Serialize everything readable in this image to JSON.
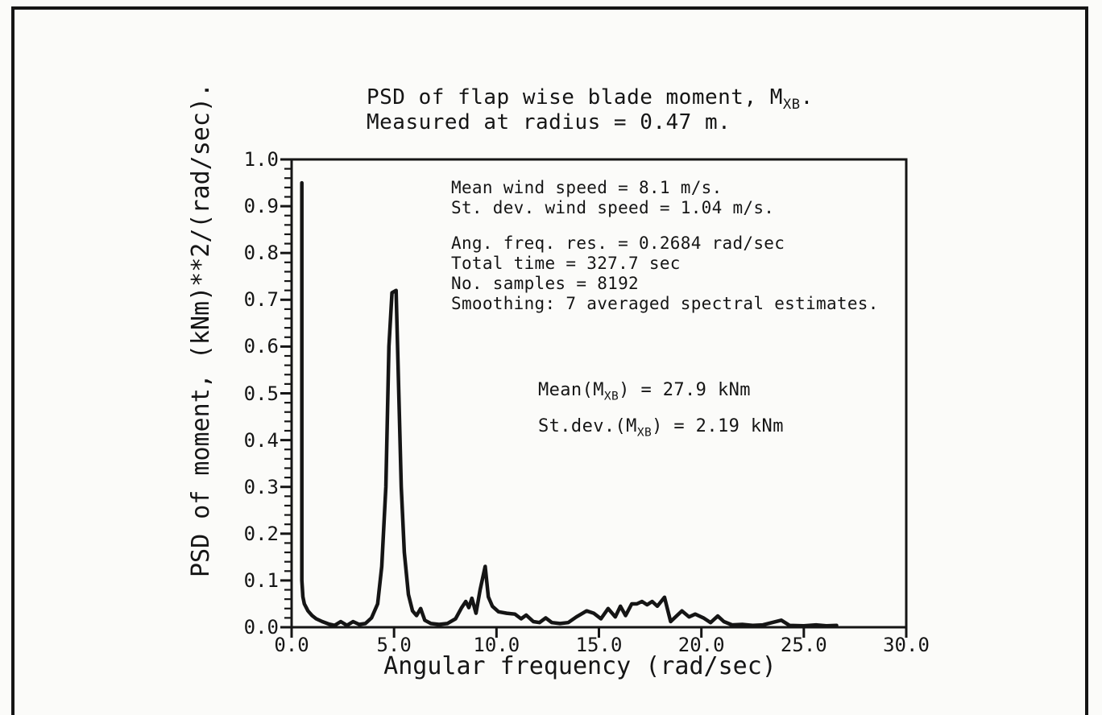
{
  "chart_data": {
    "type": "line",
    "title": {
      "prefix": "PSD of flap wise blade moment, M",
      "sub": "XB",
      "suffix": "."
    },
    "subtitle": "Measured at radius = 0.47 m.",
    "xlabel": "Angular frequency (rad/sec)",
    "ylabel": "PSD of moment, (kNm)**2/(rad/sec).",
    "xlim": [
      0,
      30
    ],
    "ylim": [
      0,
      1.0
    ],
    "x_tick_labels": [
      "0.0",
      "5.0",
      "10.0",
      "15.0",
      "20.0",
      "25.0",
      "30.0"
    ],
    "y_tick_labels": [
      "0.0",
      "0.1",
      "0.2",
      "0.3",
      "0.4",
      "0.5",
      "0.6",
      "0.7",
      "0.8",
      "0.9",
      "1.0"
    ],
    "y_minor_tick_step": 0.02,
    "grid": "off",
    "line_color": "#151515",
    "annotations": {
      "wind": [
        "Mean wind speed = 8.1 m/s.",
        "St. dev. wind speed = 1.04 m/s."
      ],
      "processing": [
        "Ang. freq. res. = 0.2684 rad/sec",
        "Total time = 327.7 sec",
        "No. samples = 8192",
        "Smoothing: 7 averaged spectral estimates."
      ],
      "stats": [
        {
          "prefix": "Mean(M",
          "sub": "XB",
          "suffix": ") = 27.9 kNm"
        },
        {
          "prefix": "St.dev.(M",
          "sub": "XB",
          "suffix": ") = 2.19 kNm"
        }
      ]
    },
    "series": [
      {
        "name": "PSD of flap wise blade moment",
        "x": [
          0.5,
          0.5,
          0.55,
          0.62,
          0.8,
          1.0,
          1.2,
          1.5,
          1.8,
          2.1,
          2.4,
          2.7,
          3.0,
          3.3,
          3.6,
          3.9,
          4.2,
          4.4,
          4.6,
          4.75,
          4.9,
          5.1,
          5.2,
          5.35,
          5.5,
          5.7,
          5.9,
          6.1,
          6.3,
          6.5,
          6.8,
          7.2,
          7.6,
          8.0,
          8.3,
          8.5,
          8.65,
          8.8,
          9.0,
          9.2,
          9.45,
          9.6,
          9.8,
          10.1,
          10.5,
          10.9,
          11.2,
          11.45,
          11.8,
          12.1,
          12.4,
          12.7,
          13.1,
          13.5,
          13.9,
          14.4,
          14.75,
          15.1,
          15.45,
          15.8,
          16.05,
          16.3,
          16.6,
          16.85,
          17.1,
          17.35,
          17.6,
          17.85,
          18.2,
          18.5,
          19.05,
          19.4,
          19.7,
          20.1,
          20.45,
          20.8,
          21.1,
          21.5,
          22.0,
          22.5,
          23.0,
          23.9,
          24.3,
          25.0,
          25.6,
          26.1,
          26.6
        ],
        "y": [
          0.95,
          0.1,
          0.065,
          0.05,
          0.035,
          0.025,
          0.018,
          0.012,
          0.007,
          0.004,
          0.012,
          0.004,
          0.012,
          0.006,
          0.008,
          0.02,
          0.05,
          0.13,
          0.3,
          0.6,
          0.715,
          0.72,
          0.55,
          0.3,
          0.16,
          0.07,
          0.035,
          0.025,
          0.04,
          0.015,
          0.008,
          0.006,
          0.008,
          0.018,
          0.042,
          0.055,
          0.042,
          0.062,
          0.03,
          0.08,
          0.13,
          0.065,
          0.045,
          0.033,
          0.03,
          0.028,
          0.018,
          0.026,
          0.012,
          0.01,
          0.02,
          0.01,
          0.008,
          0.01,
          0.022,
          0.035,
          0.03,
          0.018,
          0.04,
          0.022,
          0.045,
          0.025,
          0.05,
          0.05,
          0.055,
          0.048,
          0.055,
          0.045,
          0.064,
          0.012,
          0.035,
          0.022,
          0.028,
          0.02,
          0.01,
          0.024,
          0.012,
          0.005,
          0.006,
          0.004,
          0.005,
          0.015,
          0.004,
          0.003,
          0.005,
          0.003,
          0.004
        ]
      }
    ]
  }
}
